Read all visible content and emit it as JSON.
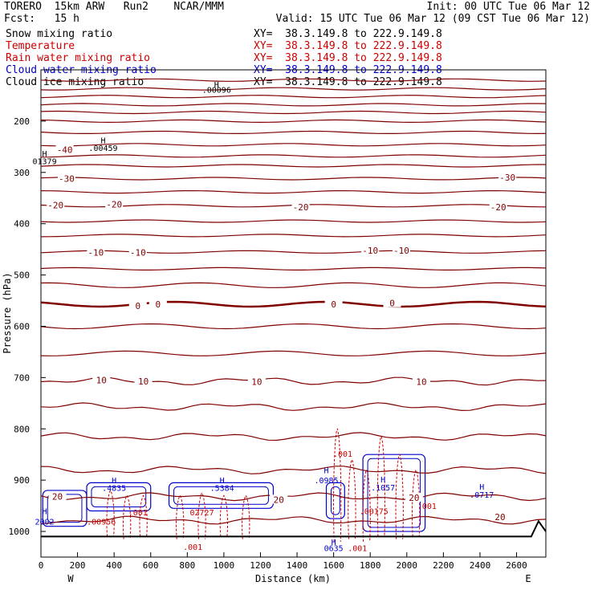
{
  "header": {
    "line1_left": "TORERO  15km ARW   Run2    NCAR/MMM",
    "line1_right": "Init: 00 UTC Tue 06 Mar 12",
    "line2_left": "Fcst:   15 h",
    "line2_right": "Valid: 15 UTC Tue 06 Mar 12 (09 CST Tue 06 Mar 12)"
  },
  "legend": [
    {
      "label": "Snow mixing ratio",
      "xy": "XY=  38.3.149.8 to 222.9.149.8",
      "color": "#000000"
    },
    {
      "label": "Temperature",
      "xy": "XY=  38.3.149.8 to 222.9.149.8",
      "color": "#cc0000"
    },
    {
      "label": "Rain water mixing ratio",
      "xy": "XY=  38.3.149.8 to 222.9.149.8",
      "color": "#cc0000"
    },
    {
      "label": "Cloud water mixing ratio",
      "xy": "XY=  38.3.149.8 to 222.9.149.8",
      "color": "#0000cc"
    },
    {
      "label": "Cloud ice mixing ratio",
      "xy": "XY=  38.3.149.8 to 222.9.149.8",
      "color": "#000000"
    }
  ],
  "chart_data": {
    "type": "cross-section contour",
    "xlabel": "Distance (km)",
    "ylabel": "Pressure (hPa)",
    "xlim": [
      0,
      2760
    ],
    "ylim": [
      1050,
      100
    ],
    "x_ticks": [
      0,
      200,
      400,
      600,
      800,
      1000,
      1200,
      1400,
      1600,
      1800,
      2000,
      2200,
      2400,
      2600
    ],
    "y_ticks": [
      200,
      300,
      400,
      500,
      600,
      700,
      800,
      900,
      1000
    ],
    "west_label": "W",
    "east_label": "E",
    "temperature_contours": [
      {
        "p": 120
      },
      {
        "p": 137
      },
      {
        "p": 152
      },
      {
        "p": 168
      },
      {
        "p": 183
      },
      {
        "p": 200
      },
      {
        "p": 222
      },
      {
        "p": 246
      },
      {
        "p": 268
      },
      {
        "p": 287
      },
      {
        "p": 312,
        "label": "-30"
      },
      {
        "p": 338
      },
      {
        "p": 365,
        "label": "-20"
      },
      {
        "p": 395
      },
      {
        "p": 423
      },
      {
        "p": 455,
        "label": "-10"
      },
      {
        "p": 488
      },
      {
        "p": 520
      },
      {
        "p": 557,
        "label": "0"
      },
      {
        "p": 600
      },
      {
        "p": 653
      },
      {
        "p": 707,
        "label": "10"
      },
      {
        "p": 757
      },
      {
        "p": 815
      },
      {
        "p": 880
      },
      {
        "p": 932,
        "label": "20"
      },
      {
        "p": 978
      }
    ],
    "contour_labels": [
      {
        "x": 130,
        "p": 256,
        "text": "-40"
      },
      {
        "x": 140,
        "p": 312,
        "text": "-30"
      },
      {
        "x": 2550,
        "p": 310,
        "text": "-30"
      },
      {
        "x": 80,
        "p": 364,
        "text": "-20"
      },
      {
        "x": 400,
        "p": 362,
        "text": "-20"
      },
      {
        "x": 1420,
        "p": 368,
        "text": "-20"
      },
      {
        "x": 2500,
        "p": 368,
        "text": "-20"
      },
      {
        "x": 300,
        "p": 456,
        "text": "-10"
      },
      {
        "x": 530,
        "p": 456,
        "text": "-10"
      },
      {
        "x": 1800,
        "p": 452,
        "text": "-10"
      },
      {
        "x": 1970,
        "p": 452,
        "text": "-10"
      },
      {
        "x": 530,
        "p": 560,
        "text": "0"
      },
      {
        "x": 640,
        "p": 557,
        "text": "0"
      },
      {
        "x": 1600,
        "p": 557,
        "text": "0"
      },
      {
        "x": 1920,
        "p": 555,
        "text": "0"
      },
      {
        "x": 330,
        "p": 705,
        "text": "10"
      },
      {
        "x": 560,
        "p": 707,
        "text": "10"
      },
      {
        "x": 1180,
        "p": 708,
        "text": "10"
      },
      {
        "x": 2080,
        "p": 708,
        "text": "10"
      },
      {
        "x": 90,
        "p": 932,
        "text": "20"
      },
      {
        "x": 1300,
        "p": 938,
        "text": "20"
      },
      {
        "x": 2040,
        "p": 934,
        "text": "20"
      },
      {
        "x": 2510,
        "p": 972,
        "text": "20"
      }
    ],
    "maxima_labels": [
      {
        "x": 960,
        "p": 128,
        "text": "H",
        "color": "#000000"
      },
      {
        "x": 960,
        "p": 138,
        "text": ".00096",
        "color": "#000000"
      },
      {
        "x": 340,
        "p": 237,
        "text": "H",
        "color": "#000000"
      },
      {
        "x": 340,
        "p": 252,
        "text": ".00459",
        "color": "#000000"
      },
      {
        "x": 20,
        "p": 263,
        "text": "H",
        "color": "#000000"
      },
      {
        "x": 20,
        "p": 278,
        "text": "01379",
        "color": "#000000"
      },
      {
        "x": 400,
        "p": 900,
        "text": "H",
        "color": "#0000cc"
      },
      {
        "x": 400,
        "p": 915,
        "text": ".4835",
        "color": "#0000cc"
      },
      {
        "x": 990,
        "p": 900,
        "text": "H",
        "color": "#0000cc"
      },
      {
        "x": 990,
        "p": 915,
        "text": ".5384",
        "color": "#0000cc"
      },
      {
        "x": 1560,
        "p": 880,
        "text": "H",
        "color": "#0000cc"
      },
      {
        "x": 1560,
        "p": 900,
        "text": ".0985",
        "color": "#0000cc"
      },
      {
        "x": 1870,
        "p": 898,
        "text": "H",
        "color": "#0000cc"
      },
      {
        "x": 1870,
        "p": 914,
        "text": ".1057",
        "color": "#0000cc"
      },
      {
        "x": 2410,
        "p": 912,
        "text": "H",
        "color": "#0000cc"
      },
      {
        "x": 2410,
        "p": 928,
        "text": ".0717",
        "color": "#0000cc"
      },
      {
        "x": 20,
        "p": 960,
        "text": "H",
        "color": "#0000cc"
      },
      {
        "x": 20,
        "p": 980,
        "text": "2002",
        "color": "#0000cc"
      },
      {
        "x": 1600,
        "p": 1020,
        "text": "H",
        "color": "#0000cc"
      },
      {
        "x": 1600,
        "p": 1032,
        "text": "0635",
        "color": "#0000cc"
      },
      {
        "x": 330,
        "p": 980,
        "text": ".00956",
        "color": "#cc0000"
      },
      {
        "x": 530,
        "p": 962,
        "text": ".001",
        "color": "#cc0000"
      },
      {
        "x": 880,
        "p": 962,
        "text": "02727",
        "color": "#cc0000"
      },
      {
        "x": 830,
        "p": 1030,
        "text": ".001",
        "color": "#cc0000"
      },
      {
        "x": 1650,
        "p": 848,
        "text": ".001",
        "color": "#cc0000"
      },
      {
        "x": 1820,
        "p": 960,
        "text": ".00175",
        "color": "#cc0000"
      },
      {
        "x": 1730,
        "p": 1032,
        "text": ".001",
        "color": "#cc0000"
      },
      {
        "x": 2110,
        "p": 950,
        "text": ".001",
        "color": "#cc0000"
      }
    ],
    "cloud_water_regions": [
      {
        "x1": 10,
        "x2": 250,
        "p1": 920,
        "p2": 990
      },
      {
        "x1": 250,
        "x2": 600,
        "p1": 905,
        "p2": 960
      },
      {
        "x1": 700,
        "x2": 1270,
        "p1": 905,
        "p2": 955
      },
      {
        "x1": 1560,
        "x2": 1660,
        "p1": 905,
        "p2": 975
      },
      {
        "x1": 1760,
        "x2": 2100,
        "p1": 850,
        "p2": 1000
      }
    ],
    "rain_columns": [
      {
        "x": 380,
        "p_top": 920,
        "p_bot": 1010
      },
      {
        "x": 470,
        "p_top": 930,
        "p_bot": 1015
      },
      {
        "x": 560,
        "p_top": 930,
        "p_bot": 1010
      },
      {
        "x": 760,
        "p_top": 930,
        "p_bot": 1015
      },
      {
        "x": 880,
        "p_top": 925,
        "p_bot": 1015
      },
      {
        "x": 1000,
        "p_top": 930,
        "p_bot": 1010
      },
      {
        "x": 1120,
        "p_top": 930,
        "p_bot": 1015
      },
      {
        "x": 1620,
        "p_top": 800,
        "p_bot": 1020
      },
      {
        "x": 1700,
        "p_top": 860,
        "p_bot": 1015
      },
      {
        "x": 1780,
        "p_top": 880,
        "p_bot": 1020
      },
      {
        "x": 1860,
        "p_top": 815,
        "p_bot": 1010
      },
      {
        "x": 1960,
        "p_top": 850,
        "p_bot": 1015
      },
      {
        "x": 2050,
        "p_top": 880,
        "p_bot": 1010
      }
    ],
    "surface_terrain": [
      {
        "x": 0,
        "p": 1010
      },
      {
        "x": 2600,
        "p": 1010
      },
      {
        "x": 2680,
        "p": 1010
      },
      {
        "x": 2720,
        "p": 980
      },
      {
        "x": 2760,
        "p": 1000
      }
    ]
  }
}
